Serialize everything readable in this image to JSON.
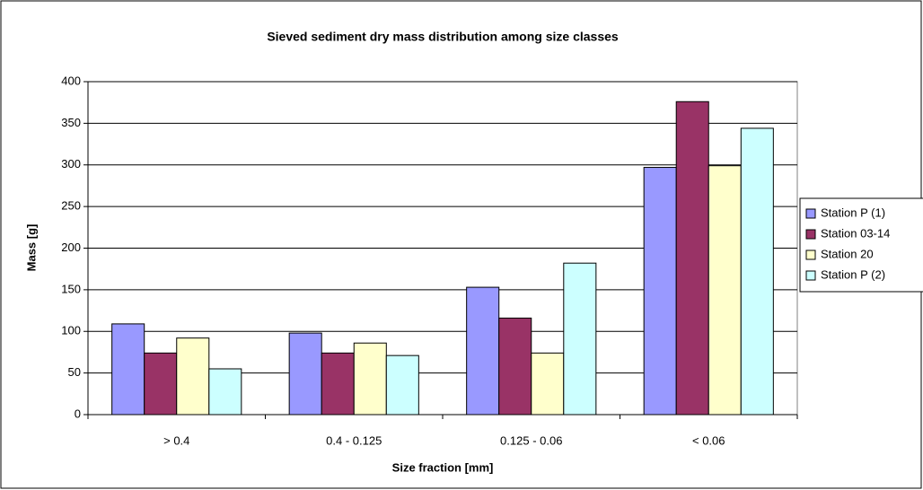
{
  "chart_data": {
    "type": "bar",
    "title": "Sieved sediment dry mass distribution among size classes",
    "x_label": "Size fraction [mm]",
    "y_label": "Mass [g]",
    "categories": [
      "> 0.4",
      "0.4 - 0.125",
      "0.125 - 0.06",
      "< 0.06"
    ],
    "series": [
      {
        "name": "Station P (1)",
        "color": "#9999ff",
        "values": [
          109,
          98,
          153,
          297
        ]
      },
      {
        "name": "Station 03-14",
        "color": "#993366",
        "values": [
          74,
          74,
          116,
          376
        ]
      },
      {
        "name": "Station 20",
        "color": "#ffffcc",
        "values": [
          92,
          86,
          74,
          299
        ]
      },
      {
        "name": "Station P (2)",
        "color": "#ccffff",
        "values": [
          55,
          71,
          182,
          344
        ]
      }
    ],
    "ylim": [
      0,
      400
    ],
    "yticks": [
      0,
      50,
      100,
      150,
      200,
      250,
      300,
      350,
      400
    ],
    "grid": true,
    "legend": "right"
  }
}
